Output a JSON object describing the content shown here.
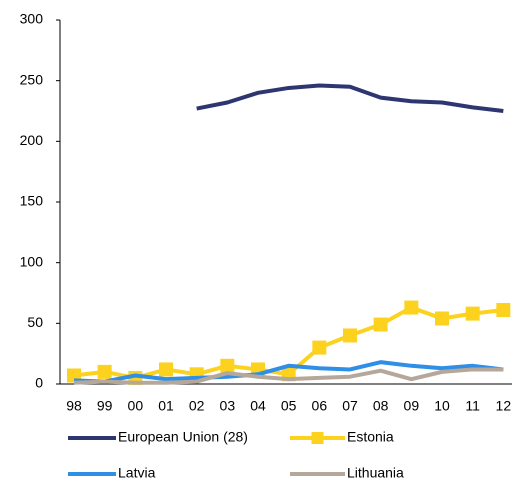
{
  "chart_data": {
    "type": "line",
    "categories": [
      "98",
      "99",
      "00",
      "01",
      "02",
      "03",
      "04",
      "05",
      "06",
      "07",
      "08",
      "09",
      "10",
      "11",
      "12"
    ],
    "series": [
      {
        "name": "European Union (28)",
        "color": "#2e3672",
        "values": [
          null,
          null,
          null,
          null,
          227,
          232,
          240,
          244,
          246,
          245,
          236,
          233,
          232,
          228,
          225
        ]
      },
      {
        "name": "Estonia",
        "color": "#fcd21e",
        "marker": "square",
        "values": [
          7,
          10,
          5,
          12,
          8,
          15,
          12,
          8,
          30,
          40,
          49,
          63,
          54,
          58,
          61
        ]
      },
      {
        "name": "Latvia",
        "color": "#2f8ee6",
        "values": [
          3,
          2,
          7,
          4,
          5,
          6,
          8,
          15,
          13,
          12,
          18,
          15,
          13,
          15,
          12
        ]
      },
      {
        "name": "Lithuania",
        "color": "#b5a79a",
        "values": [
          1,
          2,
          1,
          1,
          2,
          9,
          6,
          4,
          5,
          6,
          11,
          4,
          10,
          12,
          12
        ]
      }
    ],
    "ylim": [
      0,
      300
    ],
    "yticks": [
      0,
      50,
      100,
      150,
      200,
      250,
      300
    ],
    "grid": false
  }
}
